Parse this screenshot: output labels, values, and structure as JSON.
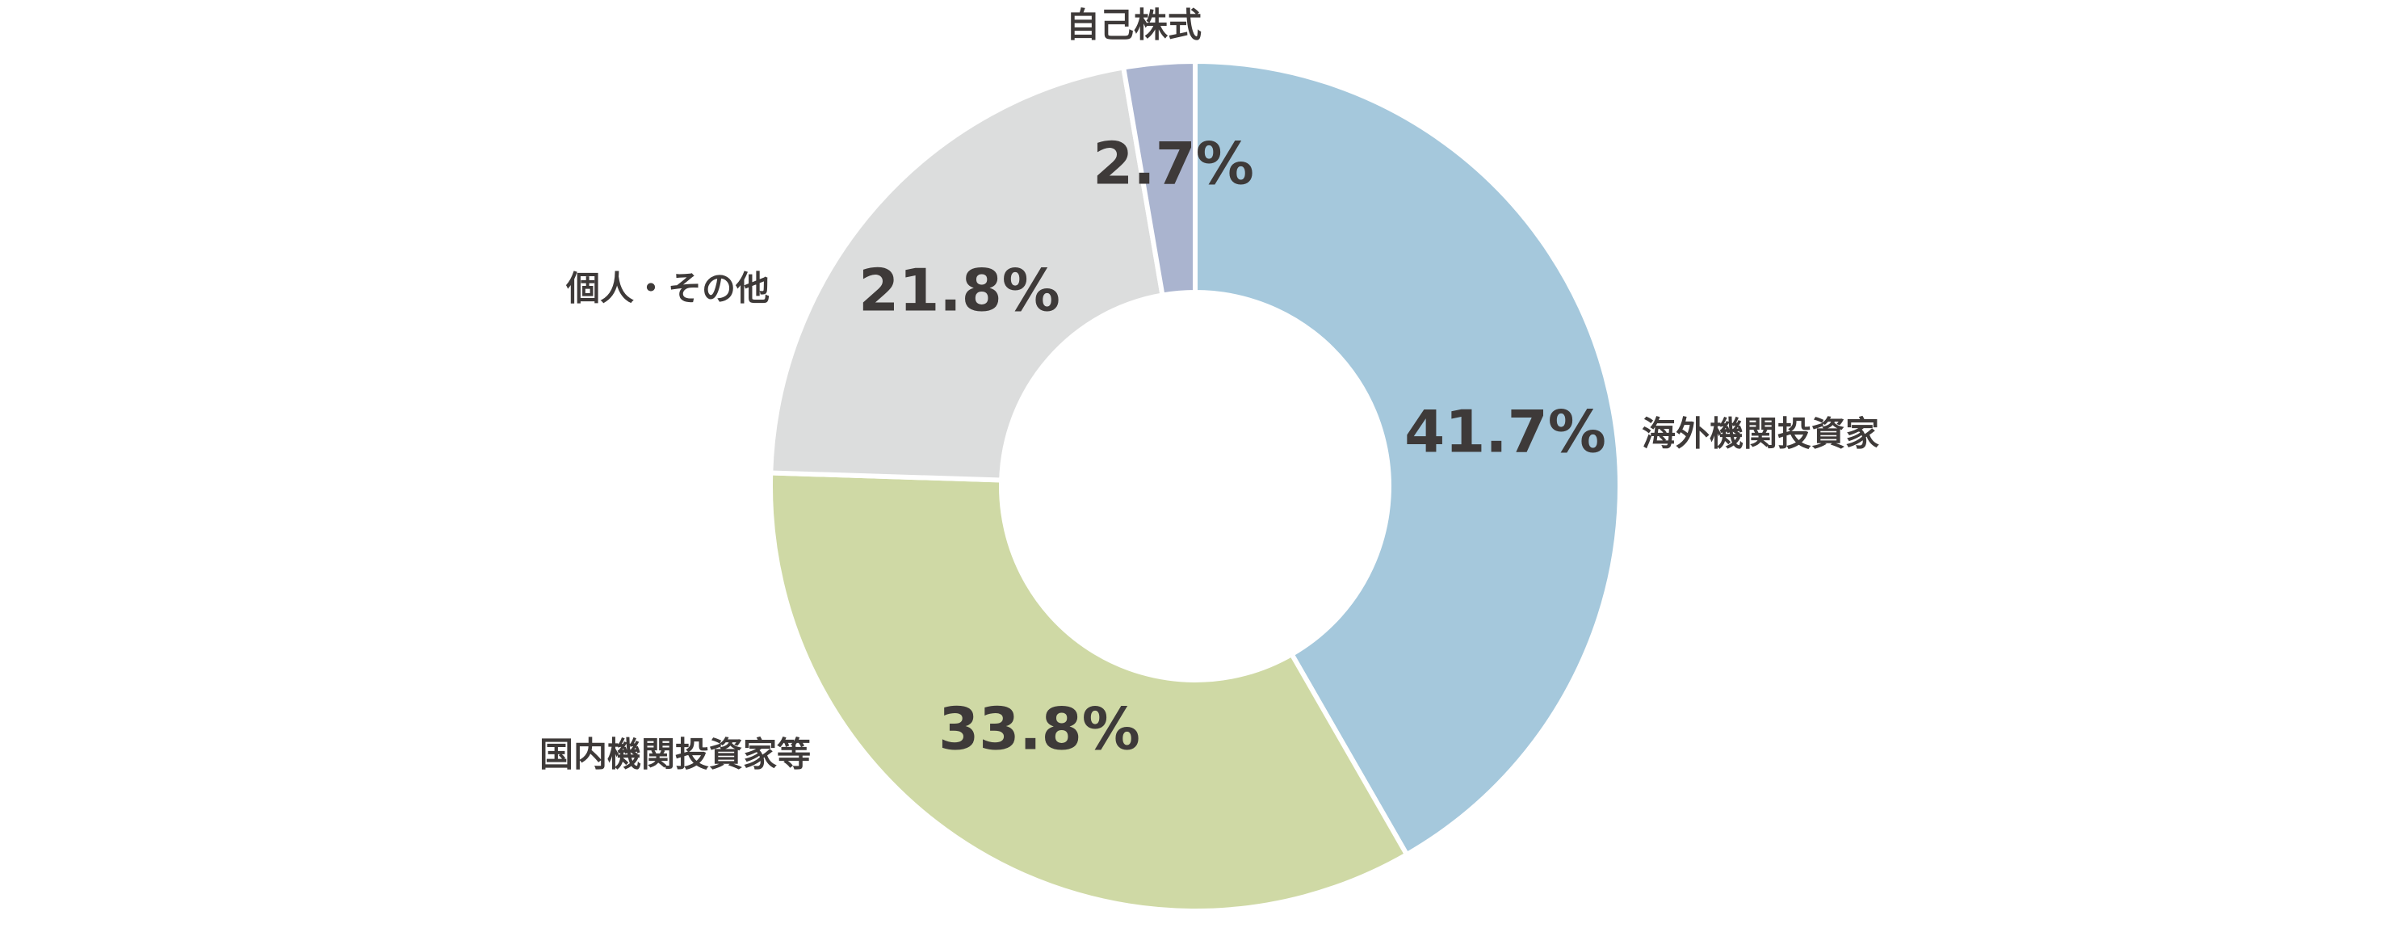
{
  "chart_data": {
    "type": "donut",
    "categories": [
      "海外機関投資家",
      "国内機関投資家等",
      "個人・その他",
      "自己株式"
    ],
    "values": [
      41.7,
      33.8,
      21.8,
      2.7
    ],
    "value_labels": [
      "41.7%",
      "33.8%",
      "21.8%",
      "2.7%"
    ],
    "colors": [
      "#a5c8dc",
      "#cfd9a5",
      "#dcdddd",
      "#aab4cf"
    ]
  }
}
